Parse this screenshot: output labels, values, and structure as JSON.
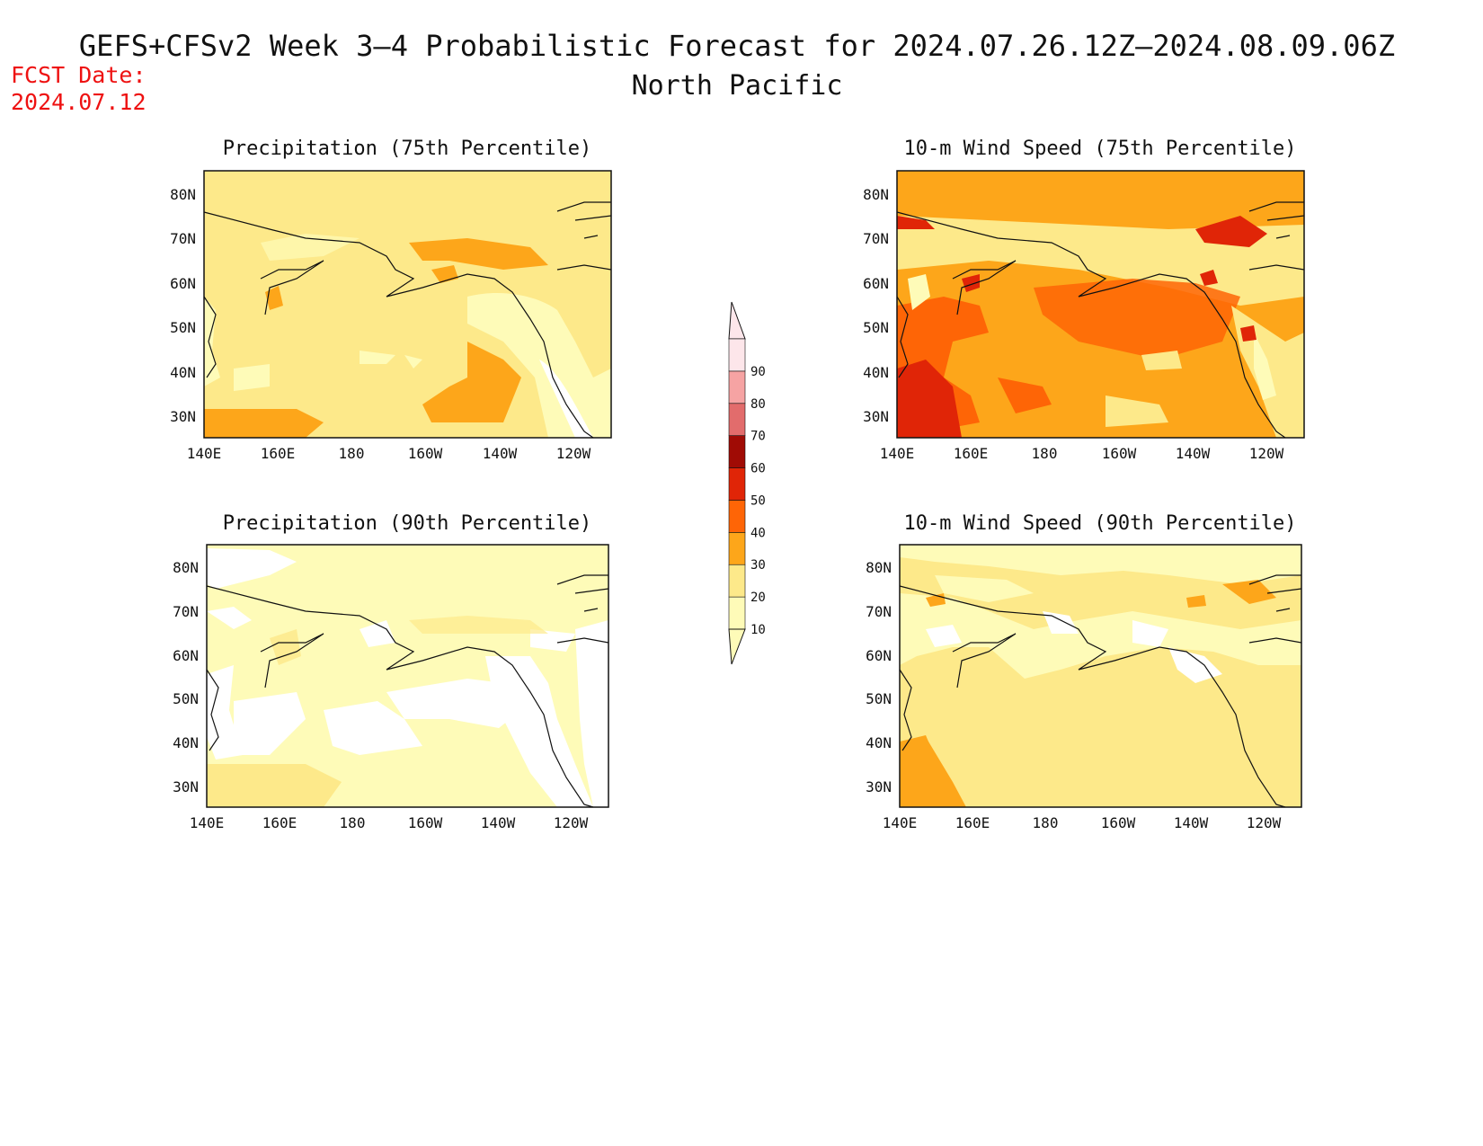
{
  "header": {
    "title": "GEFS+CFSv2 Week 3–4 Probabilistic Forecast for 2024.07.26.12Z–2024.08.09.06Z",
    "subtitle": "North Pacific",
    "fcst_label": "FCST Date:",
    "fcst_date": "2024.07.12"
  },
  "axes": {
    "lat_labels": [
      "80N",
      "70N",
      "60N",
      "50N",
      "40N",
      "30N"
    ],
    "lon_labels": [
      "140E",
      "160E",
      "180",
      "160W",
      "140W",
      "120W"
    ]
  },
  "colorbar": {
    "levels": [
      "10",
      "20",
      "30",
      "40",
      "50",
      "60",
      "70",
      "80",
      "90"
    ],
    "colors": [
      "#fefbb8",
      "#fde98a",
      "#fda61a",
      "#fe6506",
      "#e02507",
      "#a00b05",
      "#e26c6c",
      "#f6a3a3",
      "#fde6ea"
    ]
  },
  "panels": [
    {
      "title": "Precipitation (75th Percentile)",
      "base_color": "#fde98a"
    },
    {
      "title": "10-m Wind Speed (75th Percentile)",
      "base_color": "#fda61a"
    },
    {
      "title": "Precipitation (90th Percentile)",
      "base_color": "#fefbb8"
    },
    {
      "title": "10-m Wind Speed (90th Percentile)",
      "base_color": "#fde98a"
    }
  ]
}
